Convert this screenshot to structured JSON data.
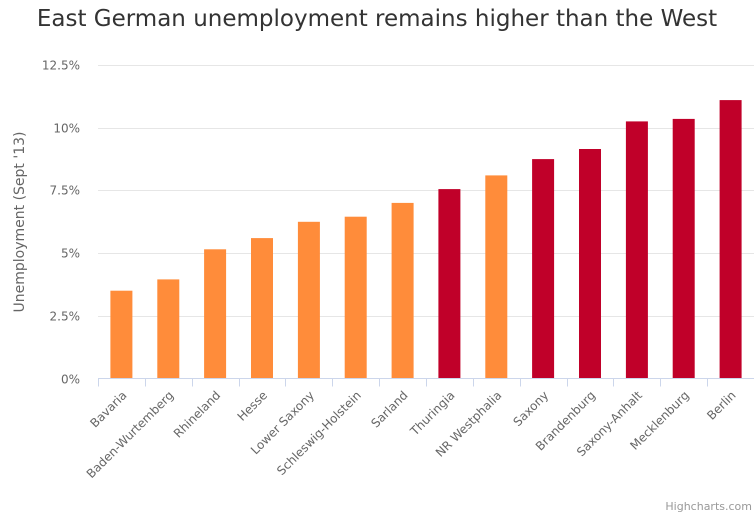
{
  "chart_data": {
    "type": "bar",
    "title": "East German unemployment remains higher than the West",
    "xlabel": "",
    "ylabel": "Unemployment (Sept '13)",
    "ylim": [
      0,
      12.5
    ],
    "yticks": [
      0,
      2.5,
      5,
      7.5,
      10,
      12.5
    ],
    "ytick_labels": [
      "0%",
      "2.5%",
      "5%",
      "7.5%",
      "10%",
      "12.5%"
    ],
    "grid": true,
    "categories": [
      "Bavaria",
      "Baden-Wurtemberg",
      "Rhineland",
      "Hesse",
      "Lower Saxony",
      "Schleswig-Holstein",
      "Sarland",
      "Thuringia",
      "NR Westphalia",
      "Saxony",
      "Brandenburg",
      "Saxony-Anhalt",
      "Mecklenburg",
      "Berlin"
    ],
    "values": [
      3.5,
      3.95,
      5.15,
      5.6,
      6.25,
      6.45,
      7.0,
      7.55,
      8.1,
      8.75,
      9.15,
      10.25,
      10.35,
      11.1
    ],
    "group": [
      "West",
      "West",
      "West",
      "West",
      "West",
      "West",
      "West",
      "East",
      "West",
      "East",
      "East",
      "East",
      "East",
      "East"
    ],
    "colors": {
      "West": "#ff8c3a",
      "East": "#c00029",
      "grid": "#e6e6e6",
      "axis": "#ccd6eb",
      "text": "#666666"
    }
  },
  "credit": "Highcharts.com"
}
